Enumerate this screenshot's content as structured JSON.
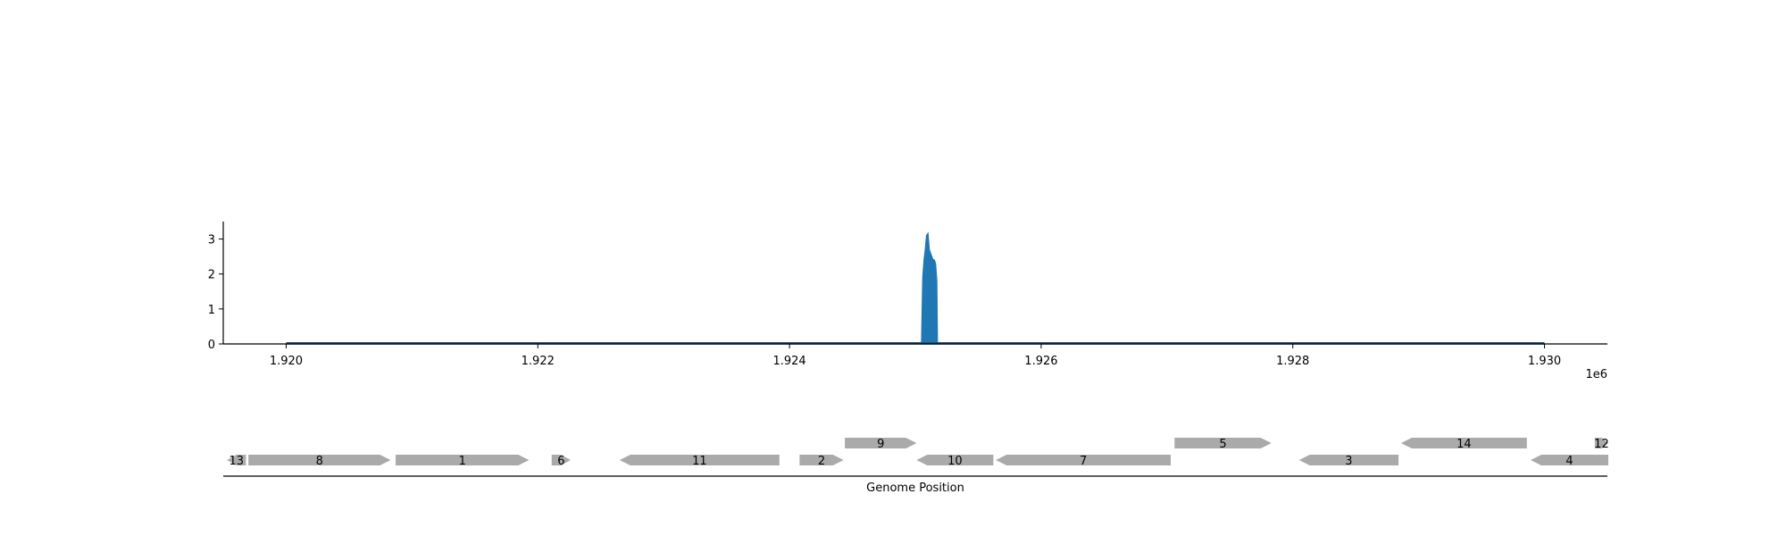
{
  "chart_data": [
    {
      "type": "area",
      "title": "",
      "xlabel": "",
      "ylabel": "",
      "x_offset_label": "1e6",
      "xlim": [
        1919500,
        1930500
      ],
      "ylim": [
        0,
        3.5
      ],
      "xticks": [
        1920000,
        1922000,
        1924000,
        1926000,
        1928000,
        1930000
      ],
      "xtick_labels": [
        "1.920",
        "1.922",
        "1.924",
        "1.926",
        "1.928",
        "1.930"
      ],
      "yticks": [
        0,
        1,
        2,
        3
      ],
      "ytick_labels": [
        "0",
        "1",
        "2",
        "3"
      ],
      "grid": false,
      "colors": {
        "series": "#1f77b4",
        "baseline": "#1f4e79"
      },
      "series": [
        {
          "x": [
            1920000,
            1925050,
            1925060,
            1925070,
            1925080,
            1925090,
            1925100,
            1925110,
            1925120,
            1925130,
            1925140,
            1925150,
            1925160,
            1925170,
            1925175,
            1930000
          ],
          "values": [
            0,
            0,
            1.9,
            2.4,
            2.7,
            3.1,
            3.15,
            2.7,
            2.6,
            2.5,
            2.4,
            2.4,
            2.3,
            1.8,
            0,
            0
          ]
        }
      ]
    },
    {
      "type": "gene-track",
      "xlabel": "Genome Position",
      "xlim": [
        1919500,
        1930500
      ],
      "colors": {
        "gene": "#aaaaaa",
        "axis": "#000000"
      },
      "genes": [
        {
          "label": "13",
          "start": 1919530,
          "end": 1919680,
          "strand": "-",
          "row": 0
        },
        {
          "label": "8",
          "start": 1919700,
          "end": 1920830,
          "strand": "+",
          "row": 0
        },
        {
          "label": "1",
          "start": 1920870,
          "end": 1921930,
          "strand": "+",
          "row": 0
        },
        {
          "label": "6",
          "start": 1922110,
          "end": 1922260,
          "strand": "+",
          "row": 0
        },
        {
          "label": "11",
          "start": 1922650,
          "end": 1923920,
          "strand": "-",
          "row": 0
        },
        {
          "label": "2",
          "start": 1924080,
          "end": 1924430,
          "strand": "+",
          "row": 0
        },
        {
          "label": "9",
          "start": 1924440,
          "end": 1925010,
          "strand": "+",
          "row": 1
        },
        {
          "label": "10",
          "start": 1925010,
          "end": 1925620,
          "strand": "-",
          "row": 0
        },
        {
          "label": "7",
          "start": 1925640,
          "end": 1927030,
          "strand": "-",
          "row": 0
        },
        {
          "label": "5",
          "start": 1927060,
          "end": 1927830,
          "strand": "+",
          "row": 1
        },
        {
          "label": "3",
          "start": 1928050,
          "end": 1928840,
          "strand": "-",
          "row": 0
        },
        {
          "label": "14",
          "start": 1928860,
          "end": 1929860,
          "strand": "-",
          "row": 1
        },
        {
          "label": "4",
          "start": 1929890,
          "end": 1930810,
          "strand": "-",
          "row": 0
        },
        {
          "label": "12",
          "start": 1930400,
          "end": 1930550,
          "strand": "+",
          "row": 1
        }
      ]
    }
  ]
}
